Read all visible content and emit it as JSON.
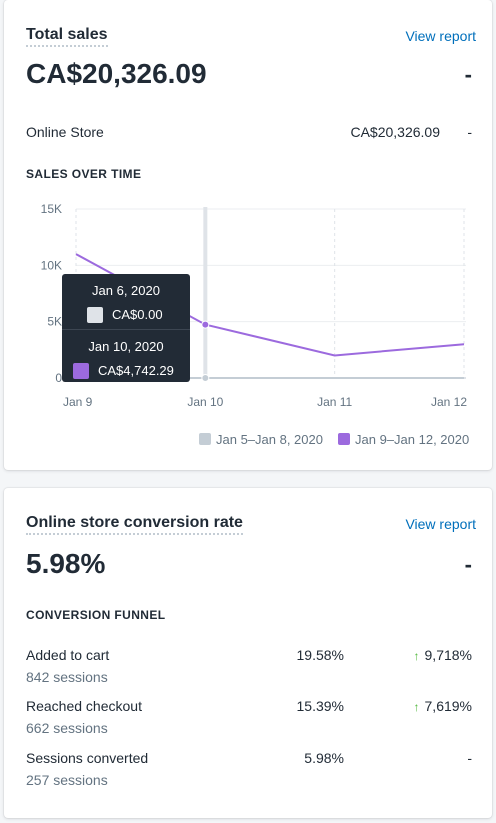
{
  "sales_card": {
    "title": "Total sales",
    "view_report": "View report",
    "total": "CA$20,326.09",
    "total_change": "-",
    "channel": {
      "label": "Online Store",
      "value": "CA$20,326.09",
      "change": "-"
    },
    "chart_heading": "SALES OVER TIME",
    "tooltip": {
      "rows": [
        {
          "date": "Jan 6, 2020",
          "value": "CA$0.00",
          "color": "#dfe3e8"
        },
        {
          "date": "Jan 10, 2020",
          "value": "CA$4,742.29",
          "color": "#9c6ade"
        }
      ]
    },
    "legend": [
      {
        "label": "Jan 5–Jan 8, 2020",
        "color": "#c4cdd5"
      },
      {
        "label": "Jan 9–Jan 12, 2020",
        "color": "#9c6ade"
      }
    ]
  },
  "chart_data": {
    "type": "line",
    "title": "SALES OVER TIME",
    "categories": [
      "Jan 9",
      "Jan 10",
      "Jan 11",
      "Jan 12"
    ],
    "y_ticks": [
      "0",
      "5K",
      "10K",
      "15K"
    ],
    "ylim": [
      0,
      15000
    ],
    "series": [
      {
        "name": "Jan 9–Jan 12, 2020",
        "color": "#9c6ade",
        "values": [
          11000,
          4742.29,
          2000,
          3000
        ]
      },
      {
        "name": "Jan 5–Jan 8, 2020",
        "color": "#c4cdd5",
        "values": [
          0,
          0,
          0,
          0
        ]
      }
    ],
    "highlight_index": 1,
    "grid": true,
    "legend_position": "bottom-right"
  },
  "conversion_card": {
    "title": "Online store conversion rate",
    "view_report": "View report",
    "rate": "5.98%",
    "rate_change": "-",
    "funnel_heading": "CONVERSION FUNNEL",
    "steps": [
      {
        "label": "Added to cart",
        "sessions": "842 sessions",
        "pct": "19.58%",
        "change": "9,718%",
        "trend": "up"
      },
      {
        "label": "Reached checkout",
        "sessions": "662 sessions",
        "pct": "15.39%",
        "change": "7,619%",
        "trend": "up"
      },
      {
        "label": "Sessions converted",
        "sessions": "257 sessions",
        "pct": "5.98%",
        "change": "-",
        "trend": "none"
      }
    ]
  }
}
